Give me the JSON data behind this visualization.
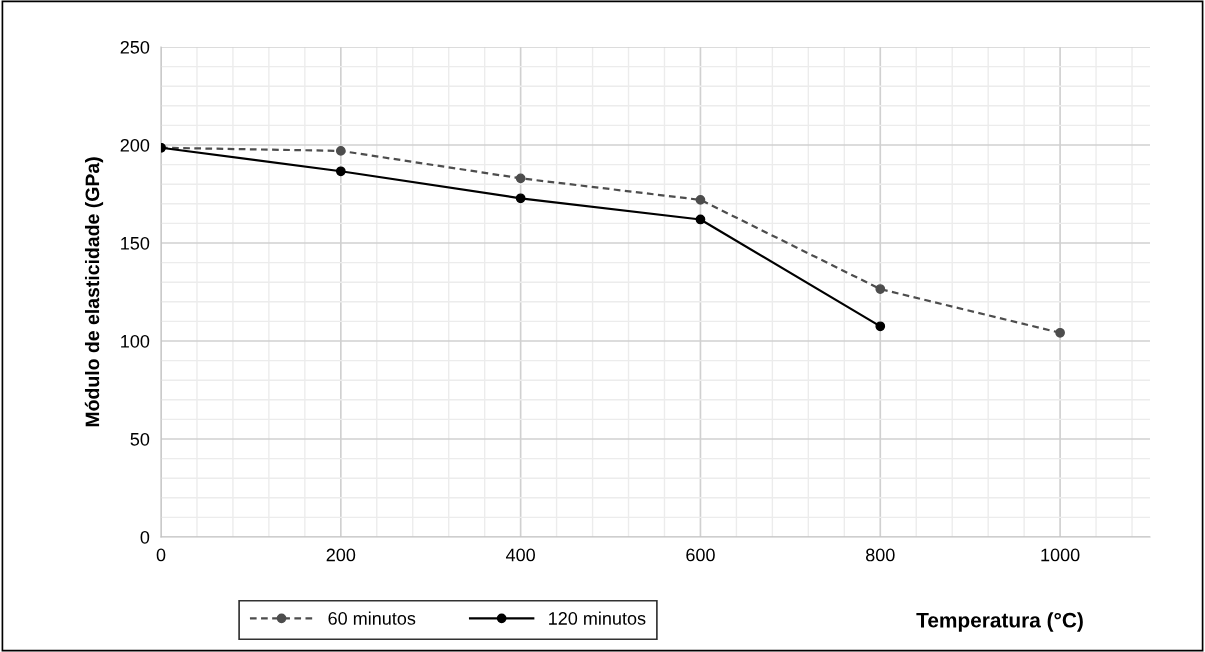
{
  "chart_data": {
    "type": "line",
    "xlabel": "Temperatura (°C)",
    "ylabel": "Módulo de elasticidade (GPa)",
    "x": [
      0,
      200,
      400,
      600,
      800,
      1000
    ],
    "series": [
      {
        "name": "60 minutos",
        "color": "#4d4d4d",
        "line_style": "dashed",
        "values": [
          198.6,
          197,
          183,
          172,
          126.5,
          104.2
        ]
      },
      {
        "name": "120 minutos",
        "color": "#000000",
        "line_style": "solid",
        "values": [
          198.6,
          186.6,
          172.8,
          162,
          107.5,
          null
        ]
      }
    ],
    "xlim": [
      0,
      1100
    ],
    "xticks": [
      0,
      200,
      400,
      600,
      800,
      1000
    ],
    "ylim": [
      0,
      250
    ],
    "yticks": [
      0,
      50,
      100,
      150,
      200,
      250
    ],
    "grid": true,
    "marker": "circle",
    "legend": "bottom left"
  }
}
